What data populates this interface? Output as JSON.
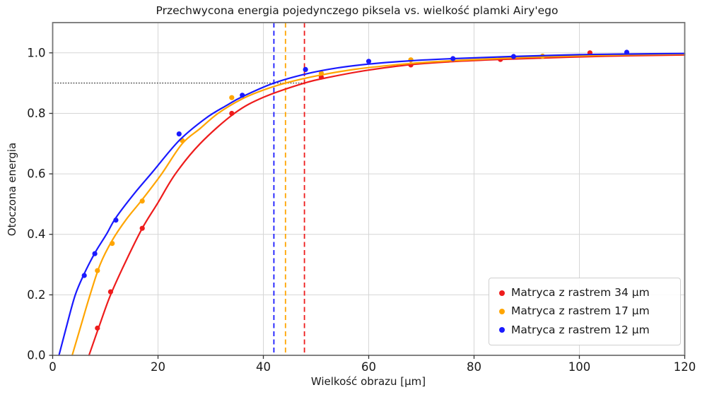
{
  "chart_data": {
    "type": "scatter",
    "title": "Przechwycona energia pojedynczego piksela vs. wielkość plamki Airy'ego",
    "xlabel": "Wielkość obrazu [μm]",
    "ylabel": "Otoczona energia",
    "xlim": [
      0,
      120
    ],
    "ylim": [
      0,
      1.1
    ],
    "xticks": [
      0,
      20,
      40,
      60,
      80,
      100,
      120
    ],
    "xtick_labels": [
      "0",
      "20",
      "40",
      "60",
      "80",
      "100",
      "120"
    ],
    "yticks": [
      0.0,
      0.2,
      0.4,
      0.6,
      0.8,
      1.0
    ],
    "ytick_labels": [
      "0.0",
      "0.2",
      "0.4",
      "0.6",
      "0.8",
      "1.0"
    ],
    "grid": true,
    "legend_position": "lower right",
    "palette": {
      "grid": "#d6d6d6",
      "spine": "#757575",
      "tick_text": "#1a1a1a",
      "dotted_reference": "#404040"
    },
    "reference_lines": {
      "horizontal": {
        "y": 0.9,
        "x_start": 0,
        "x_end": 47.8,
        "style": "dotted",
        "color": "#404040"
      },
      "vertical": [
        {
          "x": 47.8,
          "style": "dashed",
          "color": "#ee1c1c",
          "series": "Matryca z rastrem 34 μm"
        },
        {
          "x": 44.2,
          "style": "dashed",
          "color": "#ffa500",
          "series": "Matryca z rastrem 17 μm"
        },
        {
          "x": 42.0,
          "style": "dashed",
          "color": "#1a1aff",
          "series": "Matryca z rastrem 12 μm"
        }
      ]
    },
    "series": [
      {
        "name": "Matryca z rastrem 34 μm",
        "slug": "34um",
        "color": "#ee1c1c",
        "points": [
          [
            8.5,
            0.09
          ],
          [
            11,
            0.21
          ],
          [
            17,
            0.42
          ],
          [
            34,
            0.8
          ],
          [
            51,
            0.92
          ],
          [
            68,
            0.96
          ],
          [
            85,
            0.978
          ],
          [
            102,
            1.0
          ]
        ],
        "curve": [
          [
            6.9,
            0
          ],
          [
            9,
            0.105
          ],
          [
            11,
            0.2
          ],
          [
            14,
            0.315
          ],
          [
            17,
            0.42
          ],
          [
            20,
            0.505
          ],
          [
            23.3,
            0.6
          ],
          [
            28,
            0.7
          ],
          [
            34.5,
            0.8
          ],
          [
            40,
            0.853
          ],
          [
            47.8,
            0.9
          ],
          [
            53,
            0.921
          ],
          [
            60,
            0.943
          ],
          [
            68,
            0.961
          ],
          [
            76,
            0.971
          ],
          [
            85,
            0.978
          ],
          [
            95,
            0.984
          ],
          [
            105,
            0.989
          ],
          [
            120,
            0.993
          ]
        ]
      },
      {
        "name": "Matryca z rastrem 17 μm",
        "slug": "17um",
        "color": "#ffa500",
        "points": [
          [
            8.5,
            0.28
          ],
          [
            11.3,
            0.37
          ],
          [
            17,
            0.51
          ],
          [
            24.6,
            0.71
          ],
          [
            34,
            0.852
          ],
          [
            51,
            0.933
          ],
          [
            68,
            0.977
          ],
          [
            93,
            0.989
          ]
        ],
        "curve": [
          [
            3.7,
            0
          ],
          [
            5.4,
            0.1
          ],
          [
            7.1,
            0.2
          ],
          [
            9,
            0.3
          ],
          [
            11.3,
            0.38
          ],
          [
            14,
            0.45
          ],
          [
            17,
            0.515
          ],
          [
            20.7,
            0.6
          ],
          [
            24.6,
            0.7
          ],
          [
            28,
            0.75
          ],
          [
            31.4,
            0.8
          ],
          [
            36,
            0.848
          ],
          [
            40,
            0.877
          ],
          [
            44.2,
            0.9
          ],
          [
            51,
            0.927
          ],
          [
            58,
            0.947
          ],
          [
            68,
            0.965
          ],
          [
            78,
            0.976
          ],
          [
            93,
            0.987
          ],
          [
            105,
            0.992
          ],
          [
            120,
            0.996
          ]
        ]
      },
      {
        "name": "Matryca z rastrem 12 μm",
        "slug": "12um",
        "color": "#1a1aff",
        "points": [
          [
            6,
            0.264
          ],
          [
            8,
            0.336
          ],
          [
            12,
            0.447
          ],
          [
            24,
            0.732
          ],
          [
            36,
            0.86
          ],
          [
            48,
            0.945
          ],
          [
            60,
            0.972
          ],
          [
            76,
            0.981
          ],
          [
            87.5,
            0.988
          ],
          [
            109,
            1.002
          ]
        ],
        "curve": [
          [
            1.2,
            0
          ],
          [
            2.7,
            0.1
          ],
          [
            4.3,
            0.2
          ],
          [
            6,
            0.27
          ],
          [
            8,
            0.338
          ],
          [
            10.2,
            0.4
          ],
          [
            12,
            0.455
          ],
          [
            15.5,
            0.535
          ],
          [
            18.9,
            0.605
          ],
          [
            24,
            0.71
          ],
          [
            29,
            0.783
          ],
          [
            33,
            0.826
          ],
          [
            36,
            0.855
          ],
          [
            42,
            0.9
          ],
          [
            48,
            0.93
          ],
          [
            54,
            0.95
          ],
          [
            60,
            0.963
          ],
          [
            68,
            0.974
          ],
          [
            76,
            0.981
          ],
          [
            87,
            0.988
          ],
          [
            100,
            0.994
          ],
          [
            109,
            0.996
          ],
          [
            120,
            0.998
          ]
        ]
      }
    ]
  }
}
